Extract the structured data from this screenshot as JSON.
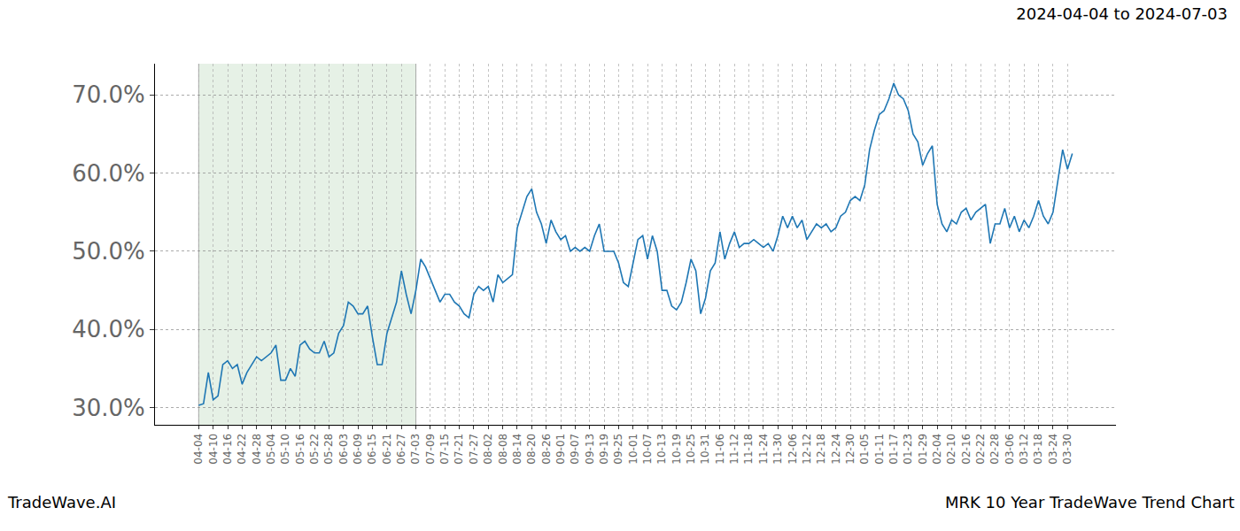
{
  "chart_data": {
    "type": "line",
    "title": "2024-04-04 to 2024-07-03",
    "annotations": [
      "TradeWave.AI",
      "MRK 10 Year TradeWave Trend Chart"
    ],
    "span": [
      "04-04",
      "07-03"
    ],
    "color": "#1f77b4",
    "grid": true,
    "categories": [
      "04-04",
      null,
      null,
      "04-10",
      null,
      null,
      "04-16",
      null,
      null,
      "04-22",
      null,
      null,
      "04-28",
      null,
      null,
      "05-04",
      null,
      null,
      "05-10",
      null,
      null,
      "05-16",
      null,
      null,
      "05-22",
      null,
      null,
      "05-28",
      null,
      null,
      "06-03",
      null,
      null,
      "06-09",
      null,
      null,
      "06-15",
      null,
      null,
      "06-21",
      null,
      null,
      "06-27",
      null,
      null,
      "07-03",
      null,
      null,
      "07-09",
      null,
      null,
      "07-15",
      null,
      null,
      "07-21",
      null,
      null,
      "07-27",
      null,
      null,
      "08-02",
      null,
      null,
      "08-08",
      null,
      null,
      "08-14",
      null,
      null,
      "08-20",
      null,
      null,
      "08-26",
      null,
      null,
      "09-01",
      null,
      null,
      "09-07",
      null,
      null,
      "09-13",
      null,
      null,
      "09-19",
      null,
      null,
      "09-25",
      null,
      null,
      "10-01",
      null,
      null,
      "10-07",
      null,
      null,
      "10-13",
      null,
      null,
      "10-19",
      null,
      null,
      "10-25",
      null,
      null,
      "10-31",
      null,
      null,
      "11-06",
      null,
      null,
      "11-12",
      null,
      null,
      "11-18",
      null,
      null,
      "11-24",
      null,
      null,
      "11-30",
      null,
      null,
      "12-06",
      null,
      null,
      "12-12",
      null,
      null,
      "12-18",
      null,
      null,
      "12-24",
      null,
      null,
      "12-30",
      null,
      null,
      "01-05",
      null,
      null,
      "01-11",
      null,
      null,
      "01-17",
      null,
      null,
      "01-23",
      null,
      null,
      "01-29",
      null,
      null,
      "02-04",
      null,
      null,
      "02-10",
      null,
      null,
      "02-16",
      null,
      null,
      "02-22",
      null,
      null,
      "02-28",
      null,
      null,
      "03-06",
      null,
      null,
      "03-12",
      null,
      null,
      "03-18",
      null,
      null,
      "03-24",
      null,
      null,
      "03-30",
      null
    ],
    "values": [
      30.3,
      30.5,
      34.5,
      31,
      31.5,
      35.5,
      36,
      35,
      35.5,
      33,
      34.5,
      35.5,
      36.5,
      36,
      36.5,
      37,
      38,
      33.5,
      33.5,
      35,
      34,
      38,
      38.5,
      37.5,
      37,
      37,
      38.5,
      36.5,
      37,
      39.5,
      40.5,
      43.5,
      43,
      42,
      42,
      43,
      39,
      35.5,
      35.5,
      39.5,
      41.5,
      43.5,
      47.5,
      44.5,
      42,
      45,
      49,
      48,
      46.5,
      45,
      43.5,
      44.5,
      44.5,
      43.5,
      43,
      42,
      41.5,
      44.5,
      45.5,
      45,
      45.5,
      43.5,
      47,
      46,
      46.5,
      47,
      53,
      55,
      57,
      58,
      55,
      53.5,
      51,
      54,
      52.5,
      51.5,
      52,
      50,
      50.5,
      50,
      50.5,
      50,
      52,
      53.5,
      50,
      50,
      50,
      48.5,
      46,
      45.5,
      48.5,
      51.5,
      52,
      49,
      52,
      50,
      45,
      45,
      43,
      42.5,
      43.5,
      46,
      49,
      47.5,
      42,
      44,
      47.5,
      48.5,
      52.5,
      49,
      51,
      52.5,
      50.5,
      51,
      51,
      51.5,
      51,
      50.5,
      51,
      50,
      52,
      54.5,
      53,
      54.5,
      53,
      54,
      51.5,
      52.5,
      53.5,
      53,
      53.5,
      52.5,
      53,
      54.5,
      55,
      56.5,
      57,
      56.5,
      58.5,
      63,
      65.5,
      67.5,
      68,
      69.5,
      71.5,
      70,
      69.5,
      68,
      65,
      64,
      61,
      62.5,
      63.5,
      56,
      53.5,
      52.5,
      54,
      53.5,
      55,
      55.5,
      54,
      55,
      55.5,
      56,
      51,
      53.5,
      53.5,
      55.5,
      53,
      54.5,
      52.5,
      54,
      53,
      54.5,
      56.5,
      54.5,
      53.5,
      55,
      59,
      63,
      60.5,
      62.5
    ],
    "ylim": [
      27.8,
      74.0
    ],
    "yticks": [
      {
        "value": 30,
        "label": "30.0%"
      },
      {
        "value": 40,
        "label": "40.0%"
      },
      {
        "value": 50,
        "label": "50.0%"
      },
      {
        "value": 60,
        "label": "60.0%"
      },
      {
        "value": 70,
        "label": "70.0%"
      }
    ]
  }
}
